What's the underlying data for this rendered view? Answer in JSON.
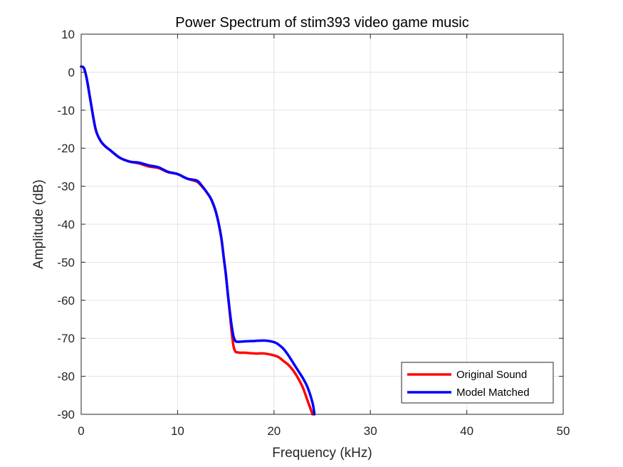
{
  "chart_data": {
    "type": "line",
    "title": "Power Spectrum of stim393 video game music",
    "xlabel": "Frequency (kHz)",
    "ylabel": "Amplitude (dB)",
    "xlim": [
      0,
      50
    ],
    "ylim": [
      -90,
      10
    ],
    "xticks": [
      0,
      10,
      20,
      30,
      40,
      50
    ],
    "yticks": [
      10,
      0,
      -10,
      -20,
      -30,
      -40,
      -50,
      -60,
      -70,
      -80,
      -90
    ],
    "grid": true,
    "legend_position": "bottom-right",
    "series": [
      {
        "name": "Original Sound",
        "color": "#ff0000",
        "x": [
          0,
          0.3,
          0.6,
          1.0,
          1.5,
          2.0,
          2.5,
          3.0,
          4.0,
          5.0,
          6.0,
          7.0,
          8.0,
          9.0,
          10.0,
          11.0,
          12.0,
          12.5,
          13.0,
          13.5,
          14.0,
          14.5,
          14.8,
          15.0,
          15.2,
          15.4,
          15.6,
          15.8,
          16.0,
          16.2,
          16.5,
          17.0,
          18.0,
          19.0,
          20.0,
          20.5,
          21.0,
          21.5,
          22.0,
          22.5,
          23.0,
          23.5,
          24.0
        ],
        "y": [
          1.5,
          1.0,
          -2.0,
          -8.0,
          -15.0,
          -18.0,
          -19.5,
          -20.5,
          -22.5,
          -23.5,
          -24.0,
          -24.8,
          -25.2,
          -26.3,
          -26.8,
          -28.0,
          -28.8,
          -30.0,
          -31.5,
          -33.5,
          -37.0,
          -43.0,
          -49.0,
          -53.0,
          -58.0,
          -63.0,
          -68.0,
          -72.0,
          -73.5,
          -73.7,
          -73.8,
          -73.8,
          -74.0,
          -74.0,
          -74.5,
          -75.0,
          -76.0,
          -77.0,
          -78.5,
          -80.5,
          -83.0,
          -86.5,
          -90.0
        ]
      },
      {
        "name": "Model Matched",
        "color": "#0000ff",
        "x": [
          0,
          0.3,
          0.6,
          1.0,
          1.5,
          2.0,
          2.5,
          3.0,
          4.0,
          5.0,
          6.0,
          7.0,
          8.0,
          9.0,
          10.0,
          11.0,
          12.0,
          12.5,
          13.0,
          13.5,
          14.0,
          14.5,
          14.8,
          15.0,
          15.2,
          15.4,
          15.6,
          15.8,
          16.0,
          16.2,
          16.5,
          17.0,
          18.0,
          19.0,
          20.0,
          20.5,
          21.0,
          21.5,
          22.0,
          22.5,
          23.0,
          23.5,
          24.0,
          24.2
        ],
        "y": [
          1.5,
          1.0,
          -2.0,
          -8.0,
          -15.0,
          -18.0,
          -19.5,
          -20.5,
          -22.5,
          -23.5,
          -23.8,
          -24.5,
          -25.0,
          -26.2,
          -26.8,
          -28.0,
          -28.5,
          -29.8,
          -31.5,
          -33.5,
          -37.0,
          -43.0,
          -49.0,
          -53.0,
          -58.0,
          -62.5,
          -66.5,
          -69.5,
          -70.7,
          -70.9,
          -70.9,
          -70.8,
          -70.7,
          -70.6,
          -71.0,
          -71.7,
          -72.8,
          -74.5,
          -76.5,
          -78.5,
          -80.5,
          -83.0,
          -87.0,
          -90.0
        ]
      }
    ]
  }
}
